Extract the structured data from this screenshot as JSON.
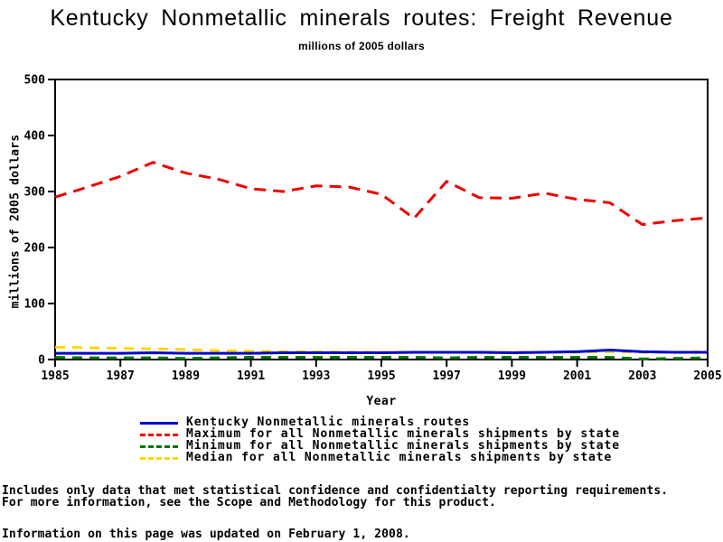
{
  "title": "Kentucky Nonmetallic minerals routes: Freight Revenue",
  "subtitle": "millions of 2005 dollars",
  "chart_data": {
    "type": "line",
    "xlabel": "Year",
    "ylabel": "millions of 2005 dollars",
    "xlim": [
      1985,
      2005
    ],
    "ylim": [
      0,
      500
    ],
    "x_ticks": [
      1985,
      1987,
      1989,
      1991,
      1993,
      1995,
      1997,
      1999,
      2001,
      2003,
      2005
    ],
    "y_ticks": [
      0,
      100,
      200,
      300,
      400,
      500
    ],
    "grid": false,
    "legend_position": "bottom",
    "x": [
      1985,
      1986,
      1987,
      1988,
      1989,
      1990,
      1991,
      1992,
      1993,
      1994,
      1995,
      1996,
      1997,
      1998,
      1999,
      2000,
      2001,
      2002,
      2003,
      2004,
      2005
    ],
    "series": [
      {
        "name": "kentucky",
        "label": "Kentucky Nonmetallic minerals routes",
        "color": "#0000cc",
        "style": "solid",
        "values": [
          11,
          11,
          11,
          12,
          11,
          11,
          11,
          12,
          12,
          12,
          12,
          13,
          13,
          13,
          12,
          13,
          14,
          17,
          14,
          13,
          13
        ]
      },
      {
        "name": "maximum",
        "label": "Maximum for all Nonmetallic minerals shipments by state",
        "color": "#ee0000",
        "style": "dashed",
        "values": [
          290,
          308,
          327,
          352,
          333,
          322,
          305,
          300,
          310,
          308,
          295,
          252,
          318,
          289,
          288,
          297,
          286,
          280,
          241,
          248,
          253
        ]
      },
      {
        "name": "minimum",
        "label": "Minimum for all Nonmetallic minerals shipments by state",
        "color": "#007700",
        "style": "dashed",
        "values": [
          4,
          3,
          3,
          3,
          2,
          3,
          4,
          4,
          4,
          4,
          4,
          4,
          3,
          4,
          4,
          4,
          4,
          4,
          1,
          2,
          3
        ]
      },
      {
        "name": "median",
        "label": "Median for all Nonmetallic minerals shipments by state",
        "color": "#ffd700",
        "style": "dashed",
        "values": [
          22,
          21,
          20,
          19,
          18,
          16,
          15,
          14,
          14,
          13,
          13,
          13,
          13,
          13,
          13,
          13,
          13,
          14,
          13,
          13,
          14
        ]
      }
    ]
  },
  "footnotes": {
    "line1": "Includes only data that met statistical confidence and confidentialty reporting requirements.",
    "line2": "For more information, see the Scope and Methodology for this product.",
    "line3": "Information on this page was updated on February 1, 2008."
  }
}
